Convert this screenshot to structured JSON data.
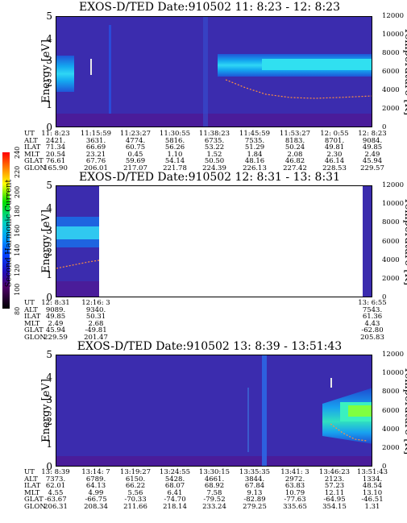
{
  "panels": [
    {
      "title": "EXOS-D/TED   Date:910502  11: 8:23 - 12: 8:23",
      "ylabel": "Energy [eV]",
      "rlabel": "Temperature [K]",
      "yticks": [
        "5",
        "4",
        "3",
        "2",
        "1",
        "0"
      ],
      "rticks": [
        "12000",
        "10000",
        "8000",
        "6000",
        "4000",
        "2000",
        "0"
      ],
      "table": {
        "labels": [
          "UT",
          "ALT",
          "ILAT",
          "MLT",
          "GLAT",
          "GLON"
        ],
        "columns": [
          [
            "11: 8:23",
            "2421.",
            "71.34",
            "20.54",
            "76.61",
            "165.90"
          ],
          [
            "11:15:59",
            "3631.",
            "66.69",
            "23.21",
            "67.76",
            "206.01"
          ],
          [
            "11:23:27",
            "4774.",
            "60.75",
            "0.45",
            "59.69",
            "217.07"
          ],
          [
            "11:30:55",
            "5816.",
            "56.26",
            "1.10",
            "54.14",
            "221.78"
          ],
          [
            "11:38:23",
            "6735.",
            "53.22",
            "1.52",
            "50.50",
            "224.39"
          ],
          [
            "11:45:59",
            "7535.",
            "51.29",
            "1.84",
            "48.16",
            "226.13"
          ],
          [
            "11:53:27",
            "8183.",
            "50.24",
            "2.08",
            "46.82",
            "227.42"
          ],
          [
            "12: 0:55",
            "8701.",
            "49.81",
            "2.30",
            "46.14",
            "228.53"
          ],
          [
            "12: 8:23",
            "9084.",
            "49.85",
            "2.49",
            "45.94",
            "229.57"
          ]
        ]
      }
    },
    {
      "title": "EXOS-D/TED   Date:910502  12: 8:31 - 13: 8:31",
      "ylabel": "Energy [eV]",
      "rlabel": "Temperature [K]",
      "yticks": [
        "5",
        "4",
        "3",
        "2",
        "1",
        "0"
      ],
      "rticks": [
        "12000",
        "10000",
        "8000",
        "6000",
        "4000",
        "2000",
        "0"
      ],
      "table": {
        "labels": [
          "UT",
          "ALT",
          "ILAT",
          "MLT",
          "GLAT",
          "GLON"
        ],
        "columns": [
          [
            "12: 8:31",
            "9089.",
            "49.85",
            "2.49",
            "45.94",
            "229.59"
          ],
          [
            "12:16: 3",
            "9340.",
            "50.31",
            "2.68",
            "-49.81",
            "201.47"
          ],
          [
            "13: 6:55",
            "7543.",
            "61.36",
            "4.43",
            "-62.80",
            "205.83"
          ]
        ]
      }
    },
    {
      "title": "EXOS-D/TED   Date:910502  13: 8:39 - 13:51:43",
      "ylabel": "Energy [eV]",
      "rlabel": "Temperature [K]",
      "yticks": [
        "5",
        "4",
        "3",
        "2",
        "1",
        "0"
      ],
      "rticks": [
        "12000",
        "10000",
        "8000",
        "6000",
        "4000",
        "2000",
        "0"
      ],
      "table": {
        "labels": [
          "UT",
          "ALT",
          "ILAT",
          "MLT",
          "GLAT",
          "GLON"
        ],
        "columns": [
          [
            "13: 8:39",
            "7373.",
            "62.01",
            "4.55",
            "-63.67",
            "206.31"
          ],
          [
            "13:14: 7",
            "6789.",
            "64.13",
            "4.99",
            "-66.75",
            "208.34"
          ],
          [
            "13:19:27",
            "6150.",
            "66.22",
            "5.56",
            "-70.33",
            "211.66"
          ],
          [
            "13:24:55",
            "5428.",
            "68.07",
            "6.41",
            "-74.70",
            "218.14"
          ],
          [
            "13:30:15",
            "4661.",
            "68.92",
            "7.58",
            "-79.52",
            "233.24"
          ],
          [
            "13:35:35",
            "3844.",
            "67.84",
            "9.13",
            "-82.89",
            "279.25"
          ],
          [
            "13:41: 3",
            "2972.",
            "63.83",
            "10.79",
            "-77.63",
            "335.65"
          ],
          [
            "13:46:23",
            "2123.",
            "57.23",
            "12.11",
            "-64.95",
            "354.15"
          ],
          [
            "13:51:43",
            "1334.",
            "48.54",
            "13.10",
            "-46.51",
            "1.31"
          ]
        ]
      }
    }
  ],
  "colorbar": {
    "label": "Second Harmonic Current",
    "ticks": [
      "240",
      "220",
      "200",
      "180",
      "160",
      "140",
      "120",
      "100",
      "80"
    ]
  },
  "chart_data": [
    {
      "type": "heatmap",
      "title": "EXOS-D/TED   Date:910502  11: 8:23 - 12: 8:23",
      "ylabel": "Energy [eV]",
      "ylim": [
        0,
        5
      ],
      "y2label": "Temperature [K]",
      "y2lim": [
        0,
        12000
      ],
      "x_ticks": [
        "11: 8:23",
        "11:15:59",
        "11:23:27",
        "11:30:55",
        "11:38:23",
        "11:45:59",
        "11:53:27",
        "12: 0:55",
        "12: 8:23"
      ]
    },
    {
      "type": "heatmap",
      "title": "EXOS-D/TED   Date:910502  12: 8:31 - 13: 8:31",
      "ylabel": "Energy [eV]",
      "ylim": [
        0,
        5
      ],
      "y2label": "Temperature [K]",
      "y2lim": [
        0,
        12000
      ],
      "x_ticks": [
        "12: 8:31",
        "12:16: 3",
        "13: 6:55"
      ]
    },
    {
      "type": "heatmap",
      "title": "EXOS-D/TED   Date:910502  13: 8:39 - 13:51:43",
      "ylabel": "Energy [eV]",
      "ylim": [
        0,
        5
      ],
      "y2label": "Temperature [K]",
      "y2lim": [
        0,
        12000
      ],
      "x_ticks": [
        "13: 8:39",
        "13:14: 7",
        "13:19:27",
        "13:24:55",
        "13:30:15",
        "13:35:35",
        "13:41: 3",
        "13:46:23",
        "13:51:43"
      ]
    }
  ]
}
